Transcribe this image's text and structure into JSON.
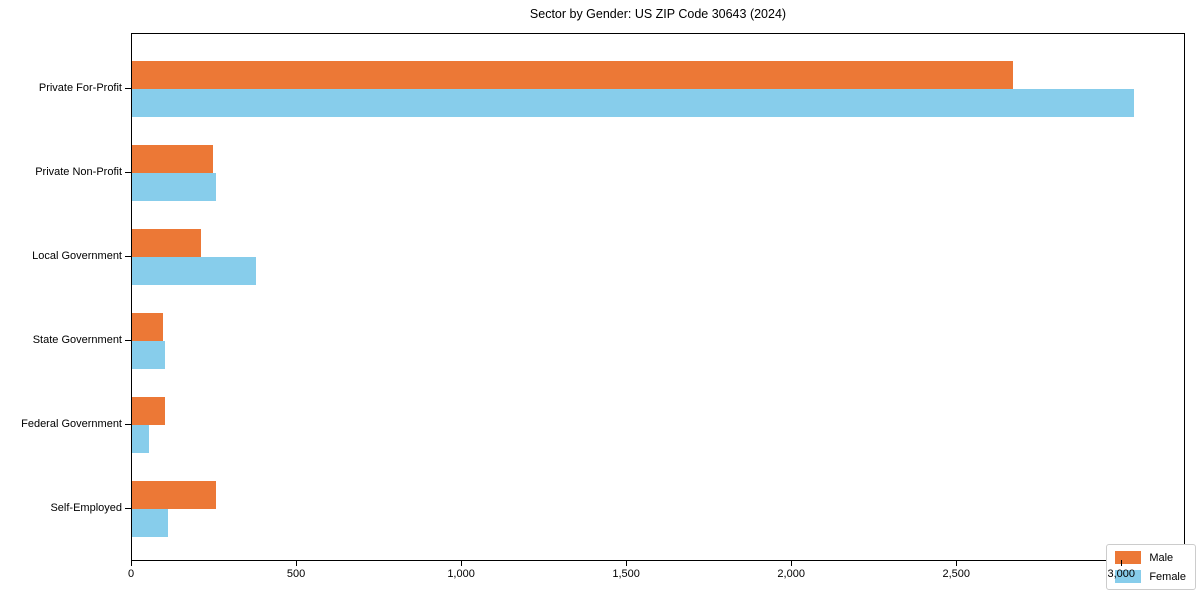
{
  "title": "Sector by Gender: US ZIP Code 30643 (2024)",
  "chart_data": {
    "type": "bar",
    "orientation": "horizontal",
    "title": "Sector by Gender: US ZIP Code 30643 (2024)",
    "categories": [
      "Private For-Profit",
      "Private Non-Profit",
      "Local Government",
      "State Government",
      "Federal Government",
      "Self-Employed"
    ],
    "series": [
      {
        "name": "Male",
        "color": "#EC7836",
        "values": [
          2670,
          245,
          210,
          95,
          100,
          255
        ]
      },
      {
        "name": "Female",
        "color": "#87CDEB",
        "values": [
          3035,
          255,
          375,
          100,
          50,
          110
        ]
      }
    ],
    "xlabel": "",
    "ylabel": "",
    "xlim": [
      0,
      3184
    ],
    "xticks": [
      0,
      500,
      1000,
      1500,
      2000,
      2500,
      3000
    ],
    "xtick_labels": [
      "0",
      "500",
      "1,000",
      "1,500",
      "2,000",
      "2,500",
      "3,000"
    ],
    "grid": false,
    "legend_position": "lower right",
    "legend_labels": [
      "Male",
      "Female"
    ]
  }
}
